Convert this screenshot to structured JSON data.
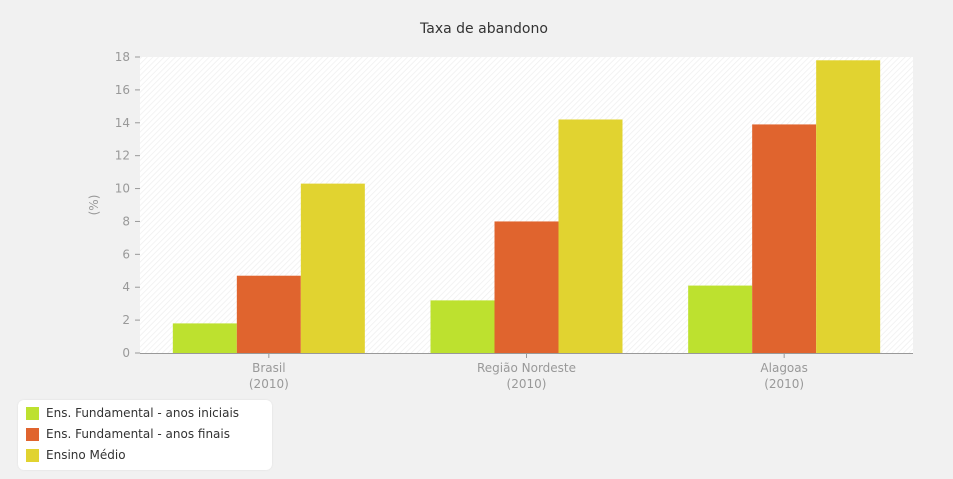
{
  "chart_data": {
    "type": "bar",
    "title": "Taxa de abandono",
    "ylabel": "(%)",
    "xlabel": "",
    "ylim": [
      0,
      18
    ],
    "yticks": [
      0,
      2,
      4,
      6,
      8,
      10,
      12,
      14,
      16,
      18
    ],
    "categories": [
      {
        "name": "Brasil",
        "year": "(2010)"
      },
      {
        "name": "Região Nordeste",
        "year": "(2010)"
      },
      {
        "name": "Alagoas",
        "year": "(2010)"
      }
    ],
    "series": [
      {
        "name": "Ens. Fundamental - anos iniciais",
        "color": "#bde12f",
        "values": [
          1.8,
          3.2,
          4.1
        ]
      },
      {
        "name": "Ens. Fundamental - anos finais",
        "color": "#e0642e",
        "values": [
          4.7,
          8.0,
          13.9
        ]
      },
      {
        "name": "Ensino Médio",
        "color": "#e1d330",
        "values": [
          10.3,
          14.2,
          17.8
        ]
      }
    ],
    "grid": false,
    "legend_position": "bottom-left"
  }
}
